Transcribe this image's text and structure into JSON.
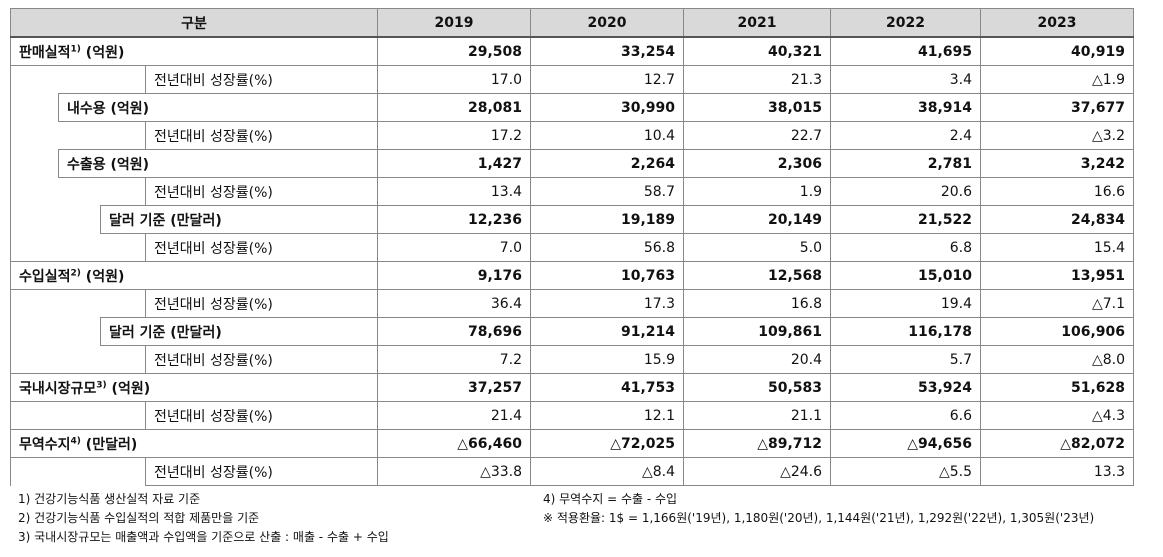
{
  "table": {
    "header": [
      "구분",
      "2019",
      "2020",
      "2021",
      "2022",
      "2023"
    ],
    "rows": [
      {
        "label": "판매실적",
        "note": "1)",
        "unit": "(억원)",
        "values": [
          "29,508",
          "33,254",
          "40,321",
          "41,695",
          "40,919"
        ]
      },
      {
        "label": "전년대비 성장률(%)",
        "values": [
          "17.0",
          "12.7",
          "21.3",
          "3.4",
          "△1.9"
        ]
      },
      {
        "label": "내수용",
        "unit": "(억원)",
        "values": [
          "28,081",
          "30,990",
          "38,015",
          "38,914",
          "37,677"
        ]
      },
      {
        "label": "전년대비 성장률(%)",
        "values": [
          "17.2",
          "10.4",
          "22.7",
          "2.4",
          "△3.2"
        ]
      },
      {
        "label": "수출용",
        "unit": "(억원)",
        "values": [
          "1,427",
          "2,264",
          "2,306",
          "2,781",
          "3,242"
        ]
      },
      {
        "label": "전년대비 성장률(%)",
        "values": [
          "13.4",
          "58.7",
          "1.9",
          "20.6",
          "16.6"
        ]
      },
      {
        "label": "달러 기준",
        "unit": "(만달러)",
        "values": [
          "12,236",
          "19,189",
          "20,149",
          "21,522",
          "24,834"
        ]
      },
      {
        "label": "전년대비 성장률(%)",
        "values": [
          "7.0",
          "56.8",
          "5.0",
          "6.8",
          "15.4"
        ]
      },
      {
        "label": "수입실적",
        "note": "2)",
        "unit": "(억원)",
        "values": [
          "9,176",
          "10,763",
          "12,568",
          "15,010",
          "13,951"
        ]
      },
      {
        "label": "전년대비 성장률(%)",
        "values": [
          "36.4",
          "17.3",
          "16.8",
          "19.4",
          "△7.1"
        ]
      },
      {
        "label": "달러 기준",
        "unit": "(만달러)",
        "values": [
          "78,696",
          "91,214",
          "109,861",
          "116,178",
          "106,906"
        ]
      },
      {
        "label": "전년대비 성장률(%)",
        "values": [
          "7.2",
          "15.9",
          "20.4",
          "5.7",
          "△8.0"
        ]
      },
      {
        "label": "국내시장규모",
        "note": "3)",
        "unit": "(억원)",
        "values": [
          "37,257",
          "41,753",
          "50,583",
          "53,924",
          "51,628"
        ]
      },
      {
        "label": "전년대비 성장률(%)",
        "values": [
          "21.4",
          "12.1",
          "21.1",
          "6.6",
          "△4.3"
        ]
      },
      {
        "label": "무역수지",
        "note": "4)",
        "unit": "(만달러)",
        "values": [
          "△66,460",
          "△72,025",
          "△89,712",
          "△94,656",
          "△82,072"
        ]
      },
      {
        "label": "전년대비 성장률(%)",
        "values": [
          "△33.8",
          "△8.4",
          "△24.6",
          "△5.5",
          "13.3"
        ]
      }
    ]
  },
  "footnotes": {
    "left": [
      "1) 건강기능식품 생산실적 자료 기준",
      "2) 건강기능식품 수입실적의 적합 제품만을 기준",
      "3) 국내시장규모는 매출액과 수입액을 기준으로 산출 : 매출 - 수출 + 수입"
    ],
    "right": [
      "4) 무역수지 = 수출 - 수입",
      "※ 적용환율: 1$ = 1,166원('19년), 1,180원('20년), 1,144원('21년), 1,292원('22년), 1,305원('23년)"
    ]
  }
}
